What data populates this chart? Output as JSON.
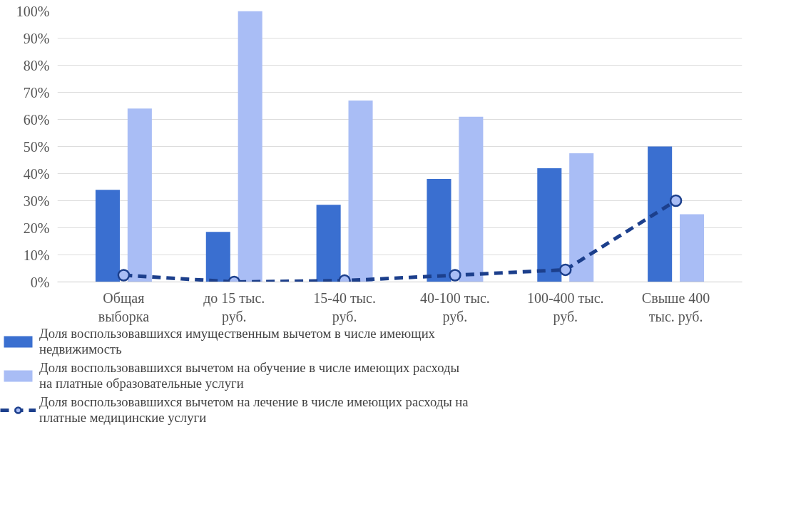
{
  "chart_data": {
    "type": "bar",
    "categories": [
      "Общая выборка",
      "до 15 тыс. руб.",
      "15-40 тыс. руб.",
      "40-100 тыс. руб.",
      "100-400 тыс. руб.",
      "Свыше 400 тыс. руб."
    ],
    "series": [
      {
        "name": "Доля воспользовавшихся имущественным вычетом в числе имеющих недвижимость",
        "color": "#3a6fd0",
        "values": [
          34,
          18.5,
          28.5,
          38,
          42,
          50
        ]
      },
      {
        "name": "Доля воспользовавшихся вычетом на обучение в числе имеющих расходы на платные образовательные услуги",
        "color": "#a9bdf5",
        "values": [
          64,
          100,
          67,
          61,
          47.5,
          25
        ]
      },
      {
        "name": "Доля воспользовавшихся вычетом на лечение в числе имеющих расходы на платные медицинские услуги",
        "color": "#1c3f8c",
        "type": "line",
        "marker": "circle",
        "line_style": "dashed",
        "values": [
          2.5,
          0,
          0.5,
          2.5,
          4.5,
          30
        ]
      }
    ],
    "ylim": [
      0,
      100
    ],
    "yticks": [
      {
        "value": 0,
        "label": "0%"
      },
      {
        "value": 10,
        "label": "10%"
      },
      {
        "value": 20,
        "label": "20%"
      },
      {
        "value": 30,
        "label": "30%"
      },
      {
        "value": 40,
        "label": "40%"
      },
      {
        "value": 50,
        "label": "50%"
      },
      {
        "value": 60,
        "label": "60%"
      },
      {
        "value": 70,
        "label": "70%"
      },
      {
        "value": 80,
        "label": "80%"
      },
      {
        "value": 90,
        "label": "90%"
      },
      {
        "value": 100,
        "label": "100%"
      }
    ],
    "grid": "y",
    "legend": "bottom"
  }
}
